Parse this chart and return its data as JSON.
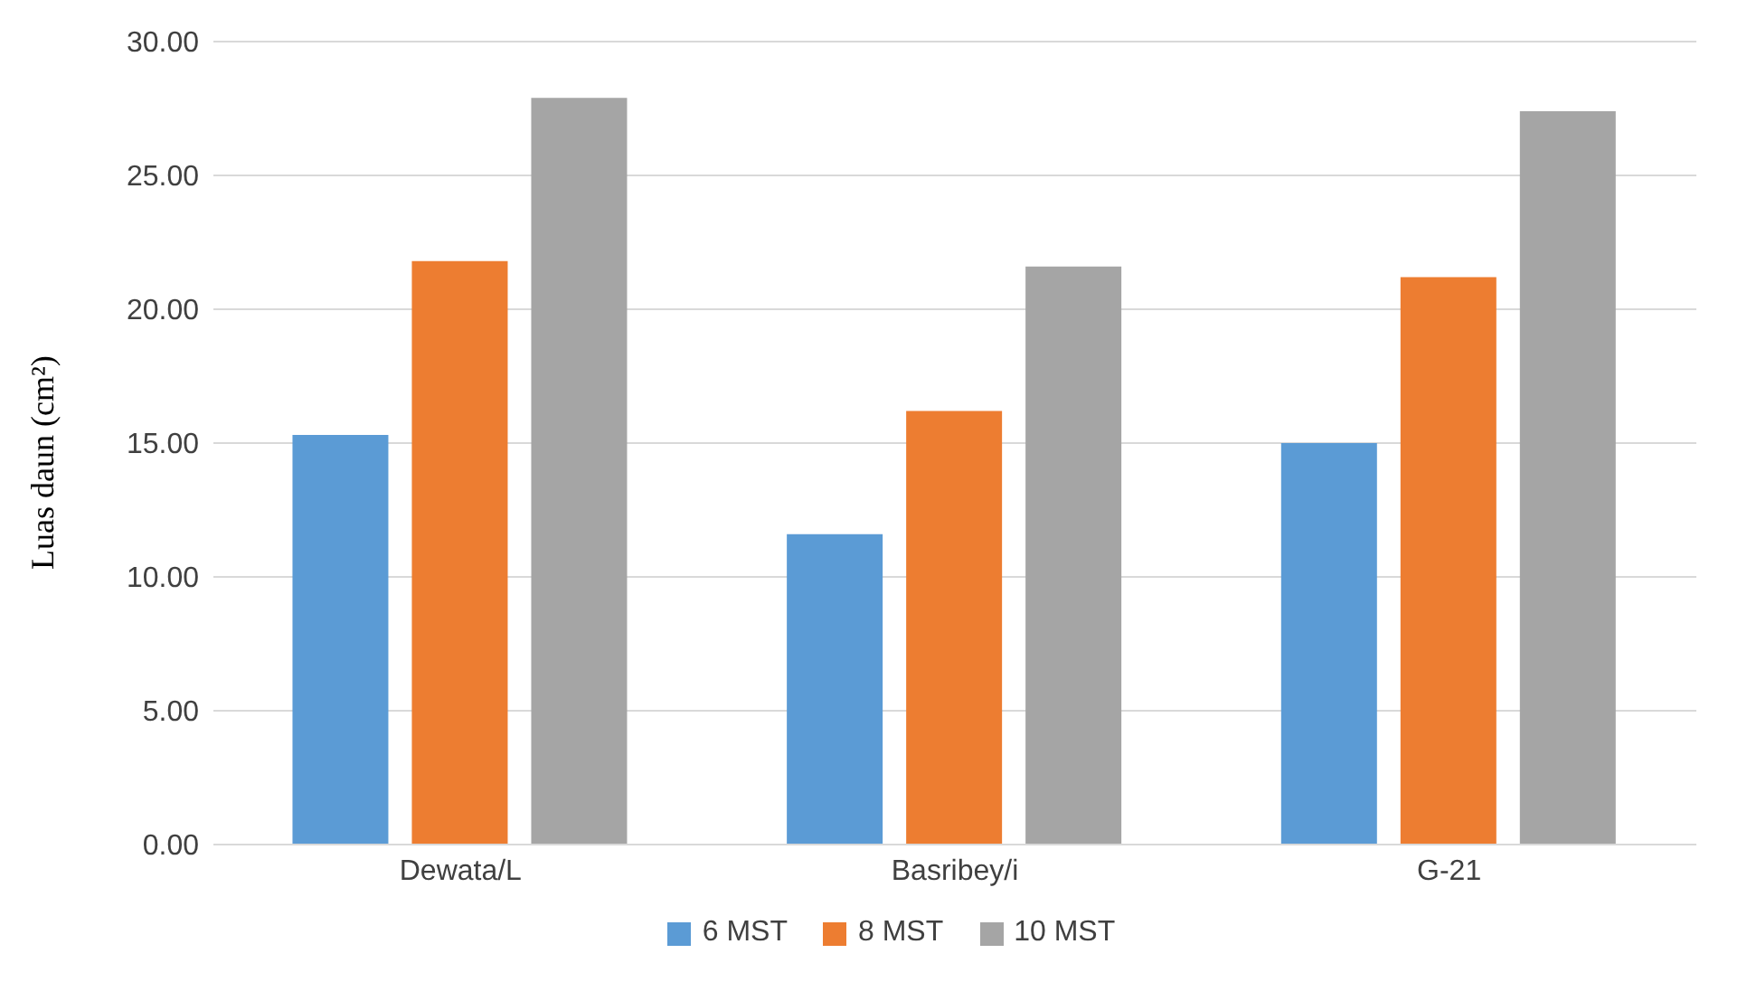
{
  "chart_data": {
    "type": "bar",
    "ylabel": "Luas daun (cm²)",
    "categories": [
      "Dewata/L",
      "Basribey/i",
      "G-21"
    ],
    "series": [
      {
        "name": "6 MST",
        "color": "#5b9bd5",
        "values": [
          15.3,
          11.6,
          15.0
        ]
      },
      {
        "name": "8 MST",
        "color": "#ed7d31",
        "values": [
          21.8,
          16.2,
          21.2
        ]
      },
      {
        "name": "10 MST",
        "color": "#a5a5a5",
        "values": [
          27.9,
          21.6,
          27.4
        ]
      }
    ],
    "ylim": [
      0,
      30
    ],
    "yticks": [
      {
        "value": 0,
        "label": "0.00"
      },
      {
        "value": 5,
        "label": "5.00"
      },
      {
        "value": 10,
        "label": "10.00"
      },
      {
        "value": 15,
        "label": "15.00"
      },
      {
        "value": 20,
        "label": "20.00"
      },
      {
        "value": 25,
        "label": "25.00"
      },
      {
        "value": 30,
        "label": "30.00"
      }
    ],
    "grid": "y",
    "legend": "bottom"
  }
}
